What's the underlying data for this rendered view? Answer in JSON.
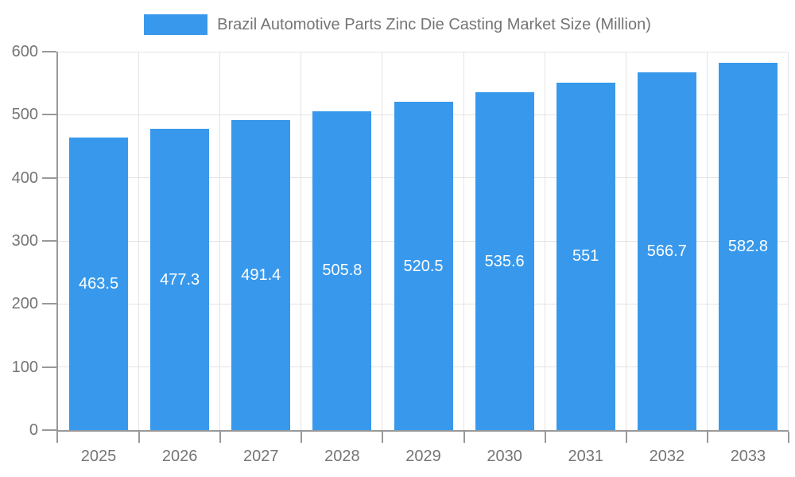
{
  "chart_data": {
    "type": "bar",
    "title": "Brazil Automotive Parts Zinc Die Casting Market Size (Million)",
    "categories": [
      "2025",
      "2026",
      "2027",
      "2028",
      "2029",
      "2030",
      "2031",
      "2032",
      "2033"
    ],
    "values": [
      463.5,
      477.3,
      491.4,
      505.8,
      520.5,
      535.6,
      551,
      566.7,
      582.8
    ],
    "value_labels": [
      "463.5",
      "477.3",
      "491.4",
      "505.8",
      "520.5",
      "535.6",
      "551",
      "566.7",
      "582.8"
    ],
    "xlabel": "",
    "ylabel": "",
    "ylim": [
      0,
      600
    ],
    "yticks": [
      0,
      100,
      200,
      300,
      400,
      500,
      600
    ],
    "grid": "horizontal and vertical gridlines on",
    "legend_position": "top-center",
    "colors": {
      "bar": "#3899EC",
      "value_label": "#ffffff",
      "axis_line": "#999999",
      "gridline": "#e3e3e3",
      "tick_label": "#757575",
      "legend_text": "#757575",
      "background": "#ffffff"
    }
  }
}
